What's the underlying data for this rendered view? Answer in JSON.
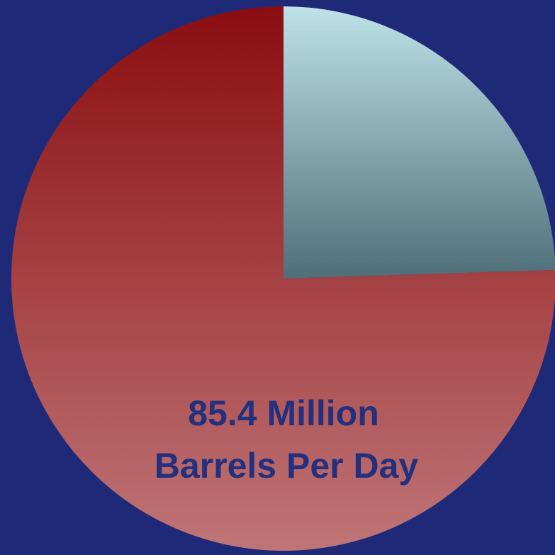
{
  "chart_data": {
    "type": "pie",
    "title": "",
    "slices": [
      {
        "value": 24.5,
        "color_top": "#bfe2e8",
        "color_bottom": "#4f6e79"
      },
      {
        "value": 75.5,
        "color_top": "#8a0d10",
        "color_bottom": "#bf7577"
      }
    ],
    "annotation": {
      "line1": "85.4 Million",
      "line2": "Barrels Per Day"
    },
    "background_color": "#1e2a78",
    "label_color": "#23307e",
    "legend": "none"
  }
}
